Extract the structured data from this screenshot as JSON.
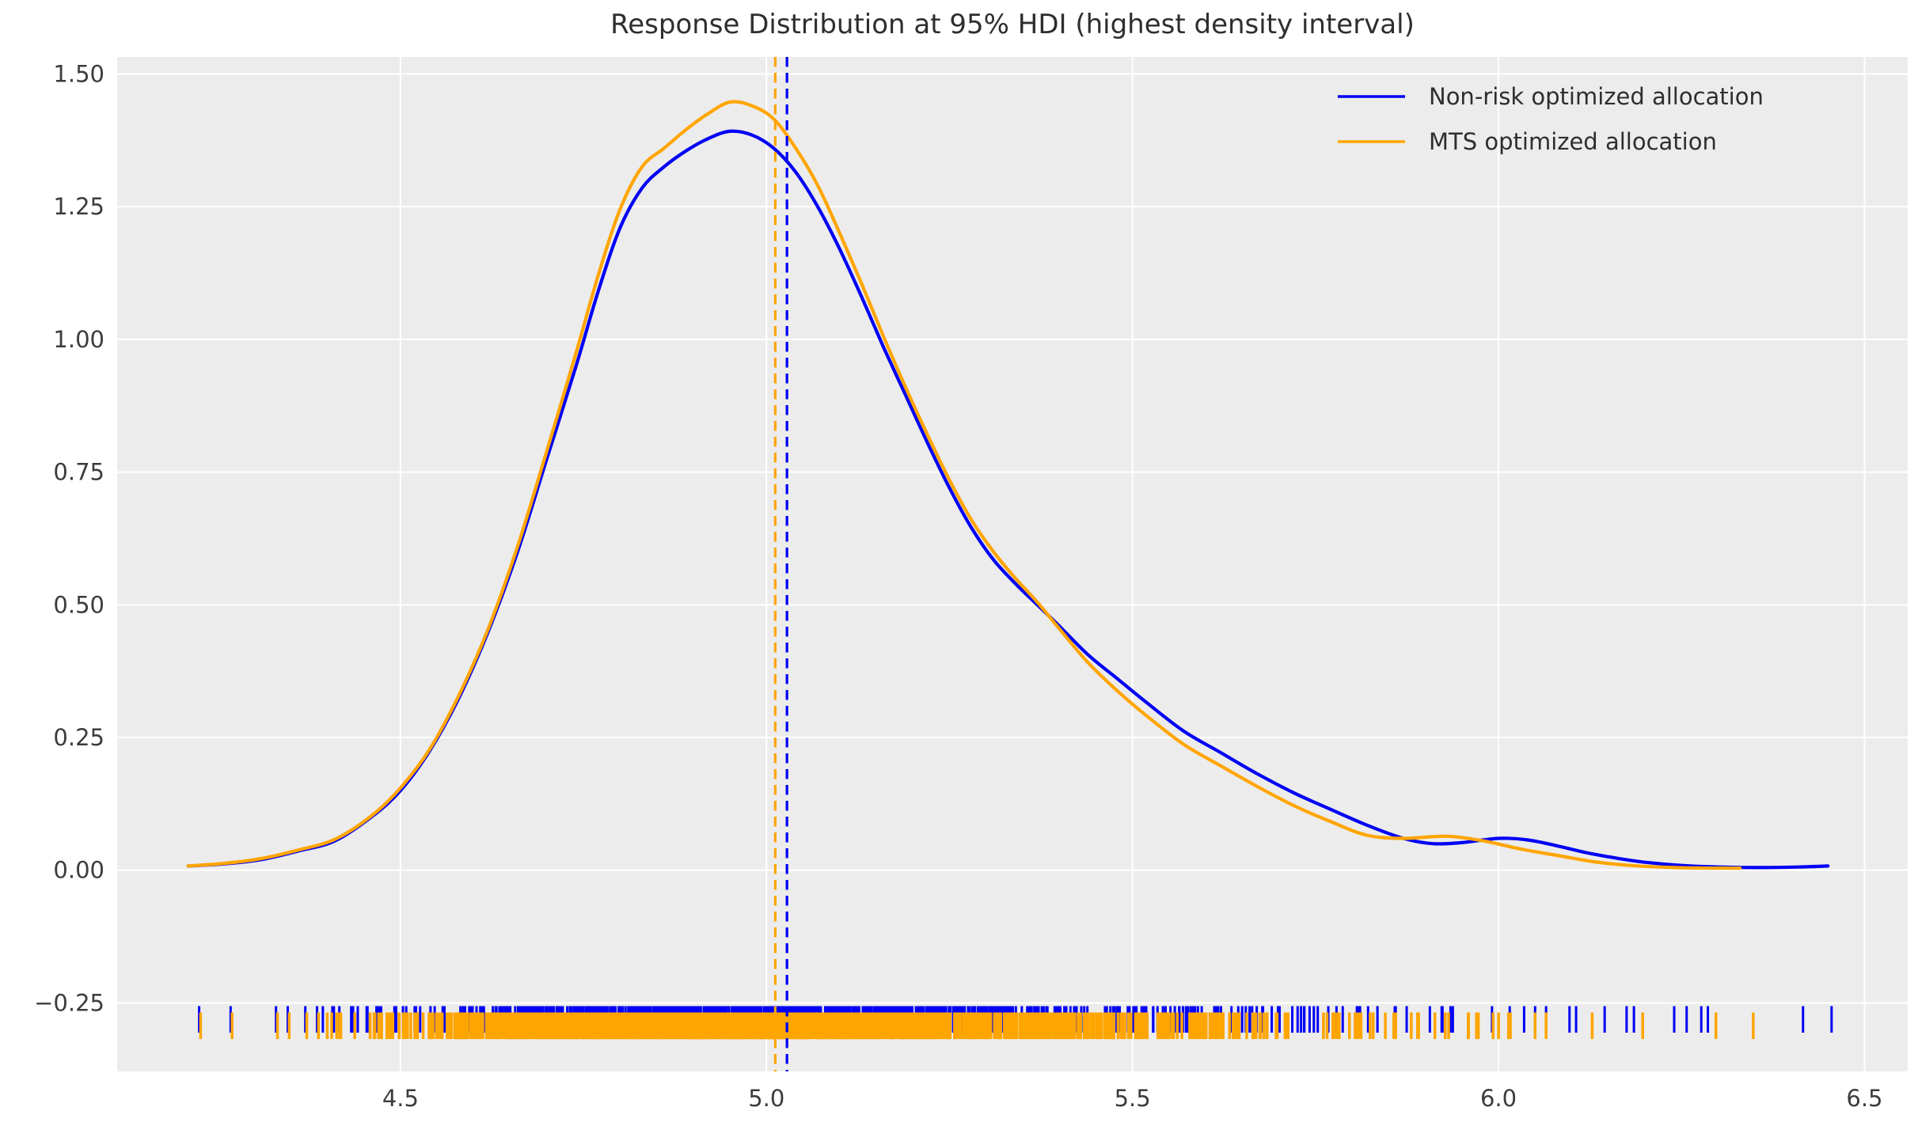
{
  "title": "Response Distribution at 95% HDI (highest density interval)",
  "colors": {
    "figure_background": "#ffffff",
    "plot_background": "#ececec",
    "grid": "#ffffff",
    "title_text": "#2e2e2e",
    "tick_text": "#3c3c3c",
    "blue": "#0000f5",
    "orange": "#ffa500"
  },
  "chart_data": {
    "type": "line",
    "subtype": "kde-density-with-rug",
    "title": "Response Distribution at 95% HDI (highest density interval)",
    "xlabel": "",
    "ylabel": "",
    "xlim": [
      4.113,
      6.559
    ],
    "ylim": [
      -0.379,
      1.532
    ],
    "grid": true,
    "legend_position": "upper right",
    "x_ticks": [
      {
        "v": 4.5,
        "label": "4.5"
      },
      {
        "v": 5.0,
        "label": "5.0"
      },
      {
        "v": 5.5,
        "label": "5.5"
      },
      {
        "v": 6.0,
        "label": "6.0"
      },
      {
        "v": 6.5,
        "label": "6.5"
      }
    ],
    "y_ticks": [
      {
        "v": -0.25,
        "label": "−0.25"
      },
      {
        "v": 0.0,
        "label": "0.00"
      },
      {
        "v": 0.25,
        "label": "0.25"
      },
      {
        "v": 0.5,
        "label": "0.50"
      },
      {
        "v": 0.75,
        "label": "0.75"
      },
      {
        "v": 1.0,
        "label": "1.00"
      },
      {
        "v": 1.25,
        "label": "1.25"
      },
      {
        "v": 1.5,
        "label": "1.50"
      }
    ],
    "series": [
      {
        "name": "Non-risk optimized allocation",
        "color": "#0000f5",
        "vline": 5.028,
        "points": [
          [
            4.21,
            0.008
          ],
          [
            4.26,
            0.012
          ],
          [
            4.31,
            0.02
          ],
          [
            4.36,
            0.036
          ],
          [
            4.41,
            0.055
          ],
          [
            4.46,
            0.1
          ],
          [
            4.5,
            0.15
          ],
          [
            4.54,
            0.225
          ],
          [
            4.58,
            0.325
          ],
          [
            4.62,
            0.45
          ],
          [
            4.66,
            0.6
          ],
          [
            4.7,
            0.775
          ],
          [
            4.74,
            0.95
          ],
          [
            4.77,
            1.09
          ],
          [
            4.8,
            1.21
          ],
          [
            4.83,
            1.285
          ],
          [
            4.86,
            1.325
          ],
          [
            4.89,
            1.355
          ],
          [
            4.92,
            1.378
          ],
          [
            4.95,
            1.392
          ],
          [
            4.98,
            1.385
          ],
          [
            5.01,
            1.36
          ],
          [
            5.04,
            1.315
          ],
          [
            5.07,
            1.25
          ],
          [
            5.1,
            1.17
          ],
          [
            5.13,
            1.08
          ],
          [
            5.16,
            0.985
          ],
          [
            5.19,
            0.895
          ],
          [
            5.22,
            0.805
          ],
          [
            5.25,
            0.72
          ],
          [
            5.28,
            0.645
          ],
          [
            5.31,
            0.585
          ],
          [
            5.34,
            0.54
          ],
          [
            5.37,
            0.5
          ],
          [
            5.4,
            0.46
          ],
          [
            5.44,
            0.405
          ],
          [
            5.48,
            0.36
          ],
          [
            5.52,
            0.315
          ],
          [
            5.57,
            0.262
          ],
          [
            5.62,
            0.222
          ],
          [
            5.67,
            0.182
          ],
          [
            5.72,
            0.146
          ],
          [
            5.77,
            0.115
          ],
          [
            5.82,
            0.085
          ],
          [
            5.87,
            0.06
          ],
          [
            5.91,
            0.05
          ],
          [
            5.95,
            0.052
          ],
          [
            6.0,
            0.06
          ],
          [
            6.04,
            0.057
          ],
          [
            6.08,
            0.046
          ],
          [
            6.12,
            0.033
          ],
          [
            6.16,
            0.023
          ],
          [
            6.2,
            0.015
          ],
          [
            6.25,
            0.009
          ],
          [
            6.3,
            0.006
          ],
          [
            6.36,
            0.005
          ],
          [
            6.41,
            0.006
          ],
          [
            6.45,
            0.008
          ]
        ],
        "rug": {
          "band_top": -0.256,
          "band_bottom": -0.306,
          "tick_width": 3,
          "count": 850,
          "seed": 7,
          "sample_range": [
            4.4,
            6.02
          ],
          "explicit": [
            4.225,
            4.268,
            4.33,
            4.346,
            4.37,
            4.386,
            4.394,
            4.407,
            6.035,
            6.05,
            6.065,
            6.097,
            6.106,
            6.145,
            6.175,
            6.185,
            6.24,
            6.257,
            6.277,
            6.286,
            6.416,
            6.455
          ]
        }
      },
      {
        "name": "MTS optimized allocation",
        "color": "#ffa500",
        "vline": 5.012,
        "points": [
          [
            4.21,
            0.008
          ],
          [
            4.26,
            0.013
          ],
          [
            4.31,
            0.022
          ],
          [
            4.36,
            0.038
          ],
          [
            4.41,
            0.058
          ],
          [
            4.46,
            0.102
          ],
          [
            4.5,
            0.155
          ],
          [
            4.54,
            0.228
          ],
          [
            4.58,
            0.33
          ],
          [
            4.62,
            0.455
          ],
          [
            4.66,
            0.61
          ],
          [
            4.7,
            0.79
          ],
          [
            4.74,
            0.975
          ],
          [
            4.77,
            1.12
          ],
          [
            4.8,
            1.245
          ],
          [
            4.83,
            1.325
          ],
          [
            4.86,
            1.36
          ],
          [
            4.89,
            1.395
          ],
          [
            4.92,
            1.425
          ],
          [
            4.95,
            1.447
          ],
          [
            4.98,
            1.44
          ],
          [
            5.01,
            1.415
          ],
          [
            5.04,
            1.36
          ],
          [
            5.07,
            1.29
          ],
          [
            5.1,
            1.2
          ],
          [
            5.13,
            1.105
          ],
          [
            5.16,
            1.005
          ],
          [
            5.19,
            0.91
          ],
          [
            5.22,
            0.82
          ],
          [
            5.25,
            0.735
          ],
          [
            5.28,
            0.66
          ],
          [
            5.31,
            0.6
          ],
          [
            5.34,
            0.55
          ],
          [
            5.37,
            0.505
          ],
          [
            5.4,
            0.455
          ],
          [
            5.44,
            0.39
          ],
          [
            5.48,
            0.337
          ],
          [
            5.52,
            0.29
          ],
          [
            5.57,
            0.237
          ],
          [
            5.62,
            0.197
          ],
          [
            5.67,
            0.158
          ],
          [
            5.72,
            0.122
          ],
          [
            5.77,
            0.092
          ],
          [
            5.82,
            0.066
          ],
          [
            5.87,
            0.06
          ],
          [
            5.93,
            0.064
          ],
          [
            5.98,
            0.055
          ],
          [
            6.03,
            0.04
          ],
          [
            6.08,
            0.028
          ],
          [
            6.13,
            0.016
          ],
          [
            6.18,
            0.009
          ],
          [
            6.24,
            0.005
          ],
          [
            6.29,
            0.004
          ],
          [
            6.33,
            0.004
          ]
        ],
        "rug": {
          "band_top": -0.268,
          "band_bottom": -0.318,
          "tick_width": 3.5,
          "count": 1600,
          "seed": 13,
          "sample_range": [
            4.4,
            6.06
          ],
          "explicit": [
            4.227,
            4.27,
            4.332,
            4.348,
            4.372,
            4.388,
            4.4,
            4.413,
            6.05,
            6.065,
            6.128,
            6.197,
            6.297,
            6.348
          ]
        }
      }
    ]
  }
}
